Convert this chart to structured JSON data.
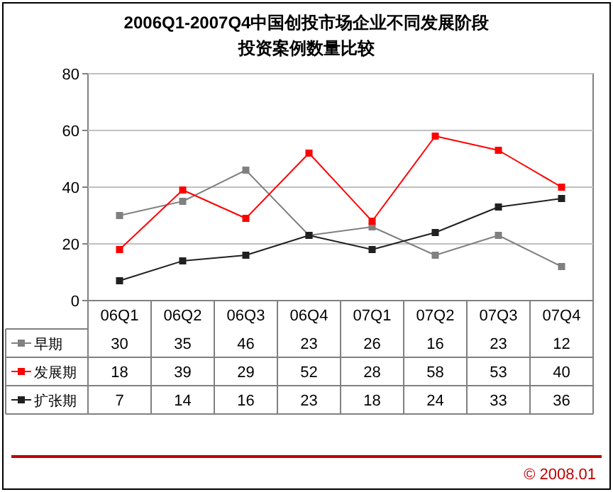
{
  "chart_data": {
    "type": "line",
    "title": "2006Q1-2007Q4中国创投市场企业不同发展阶段",
    "subtitle": "投资案例数量比较",
    "categories": [
      "06Q1",
      "06Q2",
      "06Q3",
      "06Q4",
      "07Q1",
      "07Q2",
      "07Q3",
      "07Q4"
    ],
    "series": [
      {
        "name": "早期",
        "color": "#808080",
        "values": [
          30,
          35,
          46,
          23,
          26,
          16,
          23,
          12
        ]
      },
      {
        "name": "发展期",
        "color": "#ff0000",
        "values": [
          18,
          39,
          29,
          52,
          28,
          58,
          53,
          40
        ]
      },
      {
        "name": "扩张期",
        "color": "#202020",
        "values": [
          7,
          14,
          16,
          23,
          18,
          24,
          33,
          36
        ]
      }
    ],
    "ylim": [
      0,
      80
    ],
    "yticks": [
      0,
      20,
      40,
      60,
      80
    ],
    "grid": "y",
    "marker": "square",
    "data_labels": true,
    "legend": "bottom",
    "annotations": [
      "© 2008.01"
    ]
  }
}
